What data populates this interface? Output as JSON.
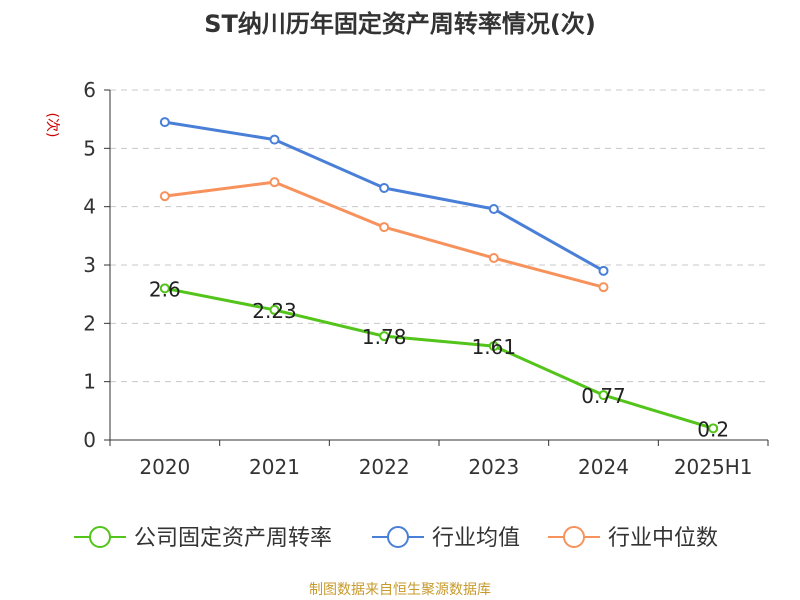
{
  "chart_data": {
    "type": "line",
    "title": "ST纳川历年固定资产周转率情况(次)",
    "ylabel": "(次)",
    "xlabel": "",
    "categories": [
      "2020",
      "2021",
      "2022",
      "2023",
      "2024",
      "2025H1"
    ],
    "ylim": [
      0,
      6
    ],
    "yticks": [
      0,
      1,
      2,
      3,
      4,
      5,
      6
    ],
    "grid": true,
    "legend_position": "bottom",
    "series": [
      {
        "name": "公司固定资产周转率",
        "color": "#52c41a",
        "values": [
          2.6,
          2.23,
          1.78,
          1.61,
          0.77,
          0.2
        ],
        "labels": [
          "2.6",
          "2.23",
          "1.78",
          "1.61",
          "0.77",
          "0.2"
        ]
      },
      {
        "name": "行业均值",
        "color": "#4a7fd8",
        "values": [
          5.45,
          5.15,
          4.32,
          3.96,
          2.9,
          null
        ]
      },
      {
        "name": "行业中位数",
        "color": "#f7925c",
        "values": [
          4.18,
          4.42,
          3.65,
          3.12,
          2.62,
          null
        ]
      }
    ],
    "source": "制图数据来自恒生聚源数据库"
  }
}
